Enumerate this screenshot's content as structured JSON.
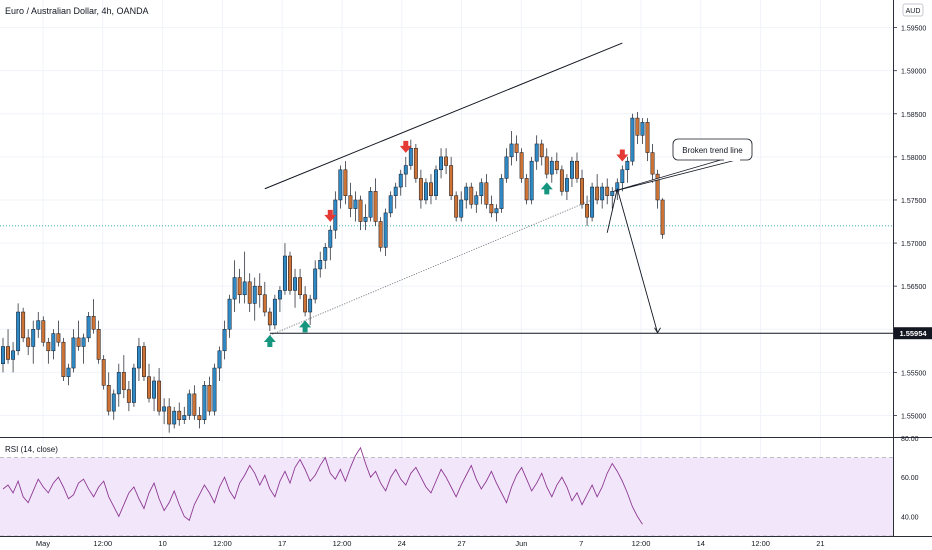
{
  "header": {
    "title": "Euro / Australian Dollar, 4h, OANDA"
  },
  "currency_badge": "AUD",
  "chart_data": [
    {
      "type": "candlestick",
      "title": "Euro / Australian Dollar, 4h, OANDA",
      "ylim": [
        1.5475,
        1.5982
      ],
      "price_ticks": [
        "1.59500",
        "1.59000",
        "1.58500",
        "1.58000",
        "1.57500",
        "1.57000",
        "1.56500",
        "1.56000",
        "1.55500",
        "1.55000"
      ],
      "x_tick_labels": [
        "May",
        "12:00",
        "10",
        "12:00",
        "17",
        "12:00",
        "24",
        "27",
        "Jun",
        "7",
        "12:00",
        "14",
        "12:00",
        "21"
      ],
      "candles": [
        [
          1.556,
          1.559,
          1.555,
          1.558
        ],
        [
          1.558,
          1.56,
          1.556,
          1.5565
        ],
        [
          1.5565,
          1.5585,
          1.555,
          1.5575
        ],
        [
          1.5575,
          1.563,
          1.557,
          1.562
        ],
        [
          1.562,
          1.5625,
          1.5585,
          1.559
        ],
        [
          1.559,
          1.56,
          1.557,
          1.558
        ],
        [
          1.558,
          1.561,
          1.556,
          1.56
        ],
        [
          1.56,
          1.562,
          1.559,
          1.561
        ],
        [
          1.561,
          1.5615,
          1.558,
          1.5585
        ],
        [
          1.5585,
          1.559,
          1.556,
          1.5575
        ],
        [
          1.5575,
          1.56,
          1.5565,
          1.5595
        ],
        [
          1.5595,
          1.561,
          1.558,
          1.5585
        ],
        [
          1.5585,
          1.559,
          1.554,
          1.5545
        ],
        [
          1.5545,
          1.556,
          1.5535,
          1.5555
        ],
        [
          1.5555,
          1.56,
          1.555,
          1.559
        ],
        [
          1.559,
          1.561,
          1.5575,
          1.558
        ],
        [
          1.558,
          1.5595,
          1.556,
          1.559
        ],
        [
          1.559,
          1.562,
          1.5585,
          1.5615
        ],
        [
          1.5615,
          1.5635,
          1.5595,
          1.56
        ],
        [
          1.56,
          1.561,
          1.556,
          1.5565
        ],
        [
          1.5565,
          1.557,
          1.553,
          1.5535
        ],
        [
          1.5535,
          1.555,
          1.55,
          1.5505
        ],
        [
          1.5505,
          1.553,
          1.5495,
          1.5525
        ],
        [
          1.5525,
          1.556,
          1.551,
          1.555
        ],
        [
          1.555,
          1.557,
          1.552,
          1.553
        ],
        [
          1.553,
          1.554,
          1.5505,
          1.5515
        ],
        [
          1.5515,
          1.556,
          1.551,
          1.5555
        ],
        [
          1.5555,
          1.559,
          1.554,
          1.558
        ],
        [
          1.558,
          1.5585,
          1.554,
          1.5545
        ],
        [
          1.5545,
          1.556,
          1.5515,
          1.552
        ],
        [
          1.552,
          1.5545,
          1.5505,
          1.554
        ],
        [
          1.554,
          1.5555,
          1.55,
          1.5505
        ],
        [
          1.5505,
          1.552,
          1.549,
          1.551
        ],
        [
          1.551,
          1.552,
          1.548,
          1.549
        ],
        [
          1.549,
          1.551,
          1.5485,
          1.5505
        ],
        [
          1.5505,
          1.5515,
          1.5488,
          1.5495
        ],
        [
          1.5495,
          1.551,
          1.549,
          1.55
        ],
        [
          1.55,
          1.553,
          1.5495,
          1.5525
        ],
        [
          1.5525,
          1.5535,
          1.5495,
          1.55
        ],
        [
          1.55,
          1.551,
          1.5485,
          1.5495
        ],
        [
          1.5495,
          1.554,
          1.549,
          1.5535
        ],
        [
          1.5535,
          1.5545,
          1.55,
          1.5505
        ],
        [
          1.5505,
          1.556,
          1.55,
          1.5555
        ],
        [
          1.5555,
          1.558,
          1.554,
          1.5575
        ],
        [
          1.5575,
          1.561,
          1.5565,
          1.56
        ],
        [
          1.56,
          1.564,
          1.559,
          1.5635
        ],
        [
          1.5635,
          1.568,
          1.562,
          1.566
        ],
        [
          1.566,
          1.567,
          1.563,
          1.564
        ],
        [
          1.564,
          1.569,
          1.563,
          1.5655
        ],
        [
          1.5655,
          1.5665,
          1.562,
          1.563
        ],
        [
          1.563,
          1.566,
          1.561,
          1.565
        ],
        [
          1.565,
          1.5665,
          1.5625,
          1.564
        ],
        [
          1.564,
          1.5655,
          1.5615,
          1.562
        ],
        [
          1.562,
          1.5625,
          1.5598,
          1.5605
        ],
        [
          1.5605,
          1.564,
          1.56,
          1.5635
        ],
        [
          1.5635,
          1.565,
          1.562,
          1.5645
        ],
        [
          1.5645,
          1.57,
          1.564,
          1.5685
        ],
        [
          1.5685,
          1.569,
          1.564,
          1.5645
        ],
        [
          1.5645,
          1.567,
          1.5625,
          1.566
        ],
        [
          1.566,
          1.567,
          1.5635,
          1.564
        ],
        [
          1.564,
          1.565,
          1.5615,
          1.562
        ],
        [
          1.562,
          1.564,
          1.5605,
          1.5635
        ],
        [
          1.5635,
          1.568,
          1.563,
          1.567
        ],
        [
          1.567,
          1.569,
          1.566,
          1.568
        ],
        [
          1.568,
          1.57,
          1.567,
          1.5695
        ],
        [
          1.5695,
          1.572,
          1.568,
          1.5715
        ],
        [
          1.5715,
          1.576,
          1.5705,
          1.575
        ],
        [
          1.575,
          1.579,
          1.574,
          1.5785
        ],
        [
          1.5785,
          1.5795,
          1.5745,
          1.5755
        ],
        [
          1.5755,
          1.577,
          1.573,
          1.574
        ],
        [
          1.574,
          1.576,
          1.5725,
          1.575
        ],
        [
          1.575,
          1.5755,
          1.5715,
          1.5725
        ],
        [
          1.5725,
          1.5745,
          1.5715,
          1.573
        ],
        [
          1.573,
          1.5765,
          1.5725,
          1.576
        ],
        [
          1.576,
          1.5775,
          1.572,
          1.5725
        ],
        [
          1.5725,
          1.573,
          1.569,
          1.5695
        ],
        [
          1.5695,
          1.574,
          1.5685,
          1.5735
        ],
        [
          1.5735,
          1.576,
          1.573,
          1.5755
        ],
        [
          1.5755,
          1.577,
          1.574,
          1.5765
        ],
        [
          1.5765,
          1.5785,
          1.5755,
          1.578
        ],
        [
          1.578,
          1.58,
          1.5765,
          1.579
        ],
        [
          1.579,
          1.582,
          1.5785,
          1.581
        ],
        [
          1.581,
          1.5815,
          1.577,
          1.5775
        ],
        [
          1.5775,
          1.5785,
          1.574,
          1.575
        ],
        [
          1.575,
          1.5775,
          1.5745,
          1.577
        ],
        [
          1.577,
          1.578,
          1.5745,
          1.5755
        ],
        [
          1.5755,
          1.579,
          1.575,
          1.5785
        ],
        [
          1.5785,
          1.581,
          1.5775,
          1.58
        ],
        [
          1.58,
          1.581,
          1.578,
          1.579
        ],
        [
          1.579,
          1.58,
          1.575,
          1.5755
        ],
        [
          1.5755,
          1.576,
          1.5725,
          1.573
        ],
        [
          1.573,
          1.576,
          1.5725,
          1.575
        ],
        [
          1.575,
          1.577,
          1.574,
          1.5765
        ],
        [
          1.5765,
          1.577,
          1.574,
          1.5745
        ],
        [
          1.5745,
          1.576,
          1.5735,
          1.5755
        ],
        [
          1.5755,
          1.5775,
          1.5745,
          1.577
        ],
        [
          1.577,
          1.578,
          1.574,
          1.5745
        ],
        [
          1.5745,
          1.5755,
          1.573,
          1.5735
        ],
        [
          1.5735,
          1.5745,
          1.5725,
          1.574
        ],
        [
          1.574,
          1.578,
          1.5735,
          1.5775
        ],
        [
          1.5775,
          1.581,
          1.577,
          1.58
        ],
        [
          1.58,
          1.583,
          1.579,
          1.5815
        ],
        [
          1.5815,
          1.5825,
          1.5795,
          1.5805
        ],
        [
          1.5805,
          1.581,
          1.577,
          1.5775
        ],
        [
          1.5775,
          1.578,
          1.5745,
          1.575
        ],
        [
          1.575,
          1.58,
          1.5745,
          1.5795
        ],
        [
          1.5795,
          1.5825,
          1.5785,
          1.5815
        ],
        [
          1.5815,
          1.582,
          1.579,
          1.58
        ],
        [
          1.58,
          1.581,
          1.5775,
          1.578
        ],
        [
          1.578,
          1.58,
          1.577,
          1.5795
        ],
        [
          1.5795,
          1.5805,
          1.578,
          1.5785
        ],
        [
          1.5785,
          1.579,
          1.5755,
          1.576
        ],
        [
          1.576,
          1.578,
          1.575,
          1.5775
        ],
        [
          1.5775,
          1.58,
          1.5765,
          1.5795
        ],
        [
          1.5795,
          1.5805,
          1.577,
          1.5775
        ],
        [
          1.5775,
          1.5785,
          1.574,
          1.5745
        ],
        [
          1.5745,
          1.5755,
          1.572,
          1.573
        ],
        [
          1.573,
          1.577,
          1.5725,
          1.5765
        ],
        [
          1.5765,
          1.578,
          1.5745,
          1.575
        ],
        [
          1.575,
          1.577,
          1.574,
          1.5765
        ],
        [
          1.5765,
          1.5775,
          1.5745,
          1.5755
        ],
        [
          1.5755,
          1.5765,
          1.574,
          1.576
        ],
        [
          1.576,
          1.5775,
          1.575,
          1.577
        ],
        [
          1.577,
          1.579,
          1.576,
          1.5785
        ],
        [
          1.5785,
          1.58,
          1.577,
          1.5795
        ],
        [
          1.5795,
          1.585,
          1.579,
          1.5845
        ],
        [
          1.5845,
          1.5852,
          1.5815,
          1.5825
        ],
        [
          1.5825,
          1.5845,
          1.5815,
          1.584
        ],
        [
          1.584,
          1.5845,
          1.5795,
          1.5805
        ],
        [
          1.5805,
          1.5815,
          1.577,
          1.578
        ],
        [
          1.578,
          1.5785,
          1.574,
          1.575
        ],
        [
          1.575,
          1.5752,
          1.5705,
          1.571
        ]
      ],
      "markers": {
        "down_arrows": [
          65,
          80,
          123
        ],
        "up_arrows": [
          53,
          60,
          108
        ]
      },
      "lines": {
        "upper_trend": [
          [
            52,
            1.5763
          ],
          [
            123,
            1.5932
          ]
        ],
        "lower_trend": [
          [
            53,
            1.5593
          ],
          [
            121,
            1.576
          ]
        ],
        "forecast": [
          [
            120,
            1.5712
          ],
          [
            122,
            1.5763
          ],
          [
            130,
            1.5596
          ]
        ],
        "horizontal_level": 1.55954,
        "current_price": 1.572
      },
      "annotation": "Broken trend line",
      "level_label": "1.55954"
    },
    {
      "type": "line",
      "title": "RSI (14, close)",
      "ylim": [
        30,
        80
      ],
      "band": [
        30,
        70
      ],
      "ticks": [
        "80.00",
        "60.00",
        "40.00"
      ],
      "values": [
        54,
        56,
        52,
        58,
        50,
        47,
        53,
        59,
        55,
        52,
        57,
        60,
        55,
        49,
        51,
        57,
        59,
        54,
        50,
        55,
        58,
        50,
        45,
        40,
        46,
        52,
        55,
        49,
        44,
        52,
        57,
        49,
        43,
        47,
        53,
        46,
        40,
        38,
        46,
        51,
        56,
        52,
        47,
        55,
        60,
        53,
        49,
        57,
        61,
        66,
        62,
        56,
        61,
        54,
        50,
        58,
        63,
        57,
        65,
        69,
        64,
        58,
        61,
        66,
        70,
        62,
        59,
        64,
        58,
        65,
        71,
        75,
        67,
        60,
        63,
        57,
        53,
        60,
        64,
        59,
        56,
        62,
        65,
        60,
        55,
        52,
        58,
        64,
        60,
        55,
        50,
        56,
        61,
        66,
        59,
        54,
        58,
        63,
        57,
        52,
        47,
        55,
        61,
        65,
        59,
        53,
        57,
        62,
        55,
        50,
        56,
        60,
        55,
        48,
        52,
        46,
        51,
        56,
        50,
        55,
        62,
        67,
        63,
        58,
        52,
        45,
        40,
        36
      ]
    }
  ]
}
